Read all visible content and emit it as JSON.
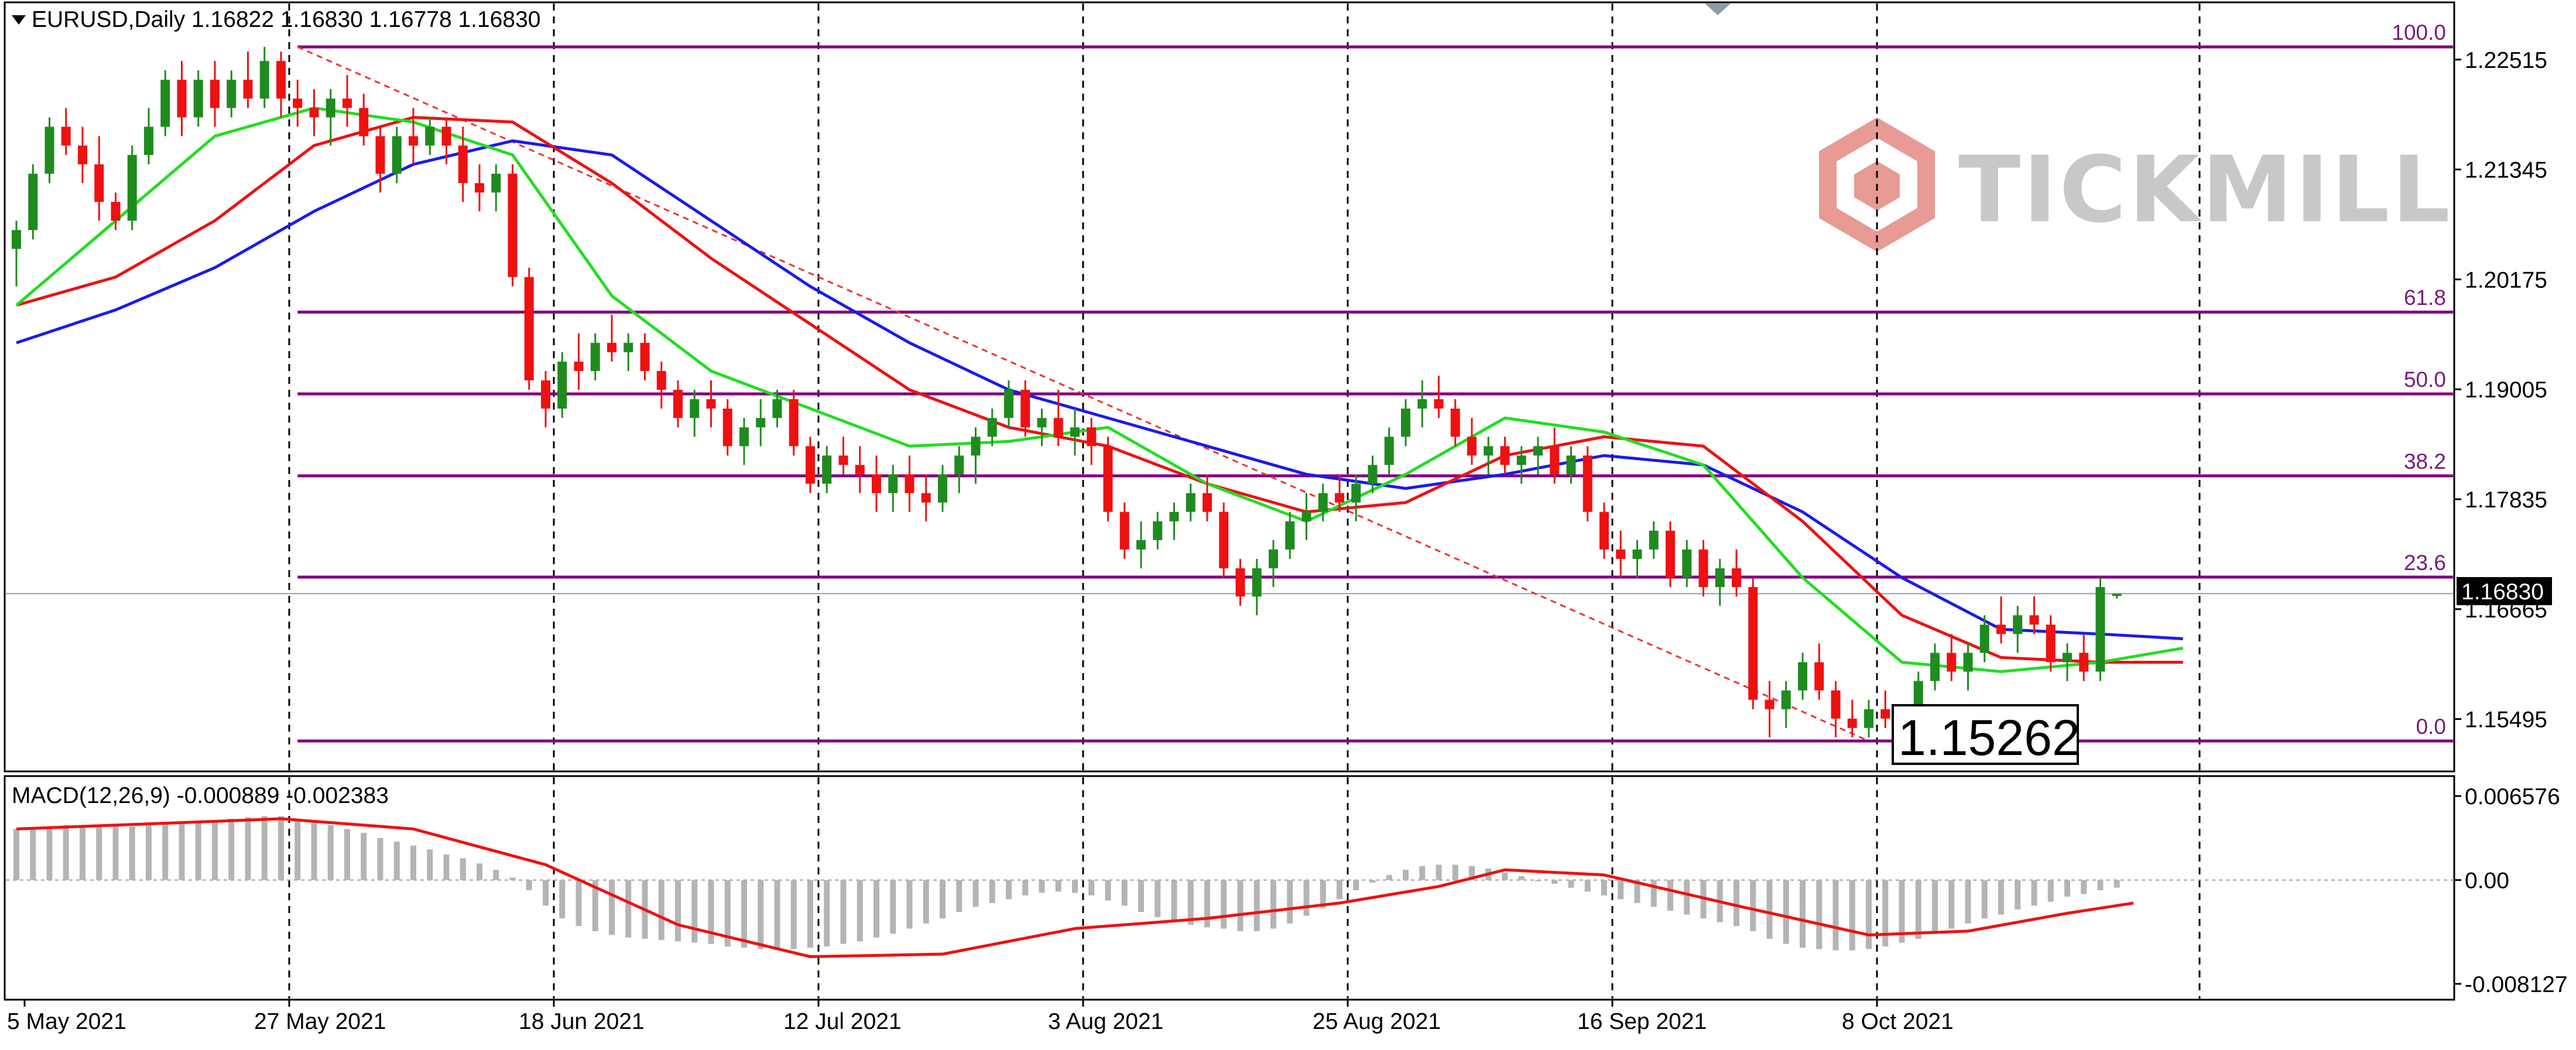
{
  "window": {
    "symbol_line": "EURUSD,Daily  1.16822 1.16830 1.16778 1.16830",
    "macd_line": "MACD(12,26,9) -0.000889 -0.002383",
    "brand_text": "TICKMILL",
    "current_price_label": "1.16830",
    "annotation_price": "1.15262"
  },
  "colors": {
    "bull": "#1f8b1f",
    "bear": "#ee1111",
    "fib": "#800080",
    "ma_fast": "#22dd22",
    "ma_mid": "#ee1111",
    "ma_slow": "#1a1aee",
    "trend": "#ee3333",
    "macd_hist": "#b4b4b4",
    "macd_signal": "#ee1111",
    "brand": "#c8c8c8",
    "brand_logo": "#e89a95"
  },
  "chart_data": [
    {
      "type": "candlestick",
      "title": "EURUSD,Daily",
      "ohlc_header": {
        "open": 1.16822,
        "high": 1.1683,
        "low": 1.16778,
        "close": 1.1683
      },
      "y_ticks": [
        "1.22515",
        "1.21345",
        "1.20175",
        "1.19005",
        "1.17835",
        "1.16665",
        "1.15495"
      ],
      "ylim": [
        1.1505,
        1.229
      ],
      "x_ticks": [
        "5 May 2021",
        "27 May 2021",
        "18 Jun 2021",
        "12 Jul 2021",
        "3 Aug 2021",
        "25 Aug 2021",
        "16 Sep 2021",
        "8 Oct 2021"
      ],
      "x_tick_index": [
        0,
        16,
        32,
        48,
        64,
        80,
        96,
        112
      ],
      "grid": "vertical-dashed",
      "current_price": 1.1683,
      "fibonacci": {
        "high": 1.2265,
        "low": 1.15262,
        "levels": [
          {
            "label": "100.0",
            "value": 1.2265
          },
          {
            "label": "61.8",
            "value": 1.19827
          },
          {
            "label": "50.0",
            "value": 1.18956
          },
          {
            "label": "38.2",
            "value": 1.18084
          },
          {
            "label": "23.6",
            "value": 1.17006
          },
          {
            "label": "0.0",
            "value": 1.15262
          }
        ]
      },
      "candles": [
        [
          1.205,
          1.208,
          1.201,
          1.207
        ],
        [
          1.207,
          1.214,
          1.206,
          1.213
        ],
        [
          1.213,
          1.219,
          1.212,
          1.218
        ],
        [
          1.218,
          1.22,
          1.215,
          1.216
        ],
        [
          1.216,
          1.218,
          1.212,
          1.214
        ],
        [
          1.214,
          1.217,
          1.208,
          1.21
        ],
        [
          1.21,
          1.211,
          1.207,
          1.208
        ],
        [
          1.208,
          1.216,
          1.207,
          1.215
        ],
        [
          1.215,
          1.22,
          1.214,
          1.218
        ],
        [
          1.218,
          1.224,
          1.217,
          1.223
        ],
        [
          1.223,
          1.225,
          1.217,
          1.219
        ],
        [
          1.219,
          1.224,
          1.218,
          1.223
        ],
        [
          1.223,
          1.225,
          1.218,
          1.22
        ],
        [
          1.22,
          1.224,
          1.219,
          1.223
        ],
        [
          1.223,
          1.226,
          1.22,
          1.221
        ],
        [
          1.221,
          1.2265,
          1.22,
          1.225
        ],
        [
          1.225,
          1.226,
          1.219,
          1.221
        ],
        [
          1.221,
          1.223,
          1.218,
          1.22
        ],
        [
          1.22,
          1.222,
          1.217,
          1.219
        ],
        [
          1.219,
          1.222,
          1.216,
          1.221
        ],
        [
          1.221,
          1.2235,
          1.218,
          1.22
        ],
        [
          1.22,
          1.2215,
          1.216,
          1.217
        ],
        [
          1.217,
          1.218,
          1.211,
          1.213
        ],
        [
          1.213,
          1.218,
          1.212,
          1.217
        ],
        [
          1.217,
          1.22,
          1.214,
          1.216
        ],
        [
          1.216,
          1.219,
          1.215,
          1.218
        ],
        [
          1.218,
          1.219,
          1.214,
          1.216
        ],
        [
          1.216,
          1.218,
          1.21,
          1.212
        ],
        [
          1.212,
          1.214,
          1.209,
          1.211
        ],
        [
          1.211,
          1.214,
          1.209,
          1.213
        ],
        [
          1.213,
          1.214,
          1.201,
          1.202
        ],
        [
          1.202,
          1.203,
          1.19,
          1.191
        ],
        [
          1.191,
          1.192,
          1.186,
          1.188
        ],
        [
          1.188,
          1.194,
          1.187,
          1.193
        ],
        [
          1.193,
          1.196,
          1.19,
          1.192
        ],
        [
          1.192,
          1.196,
          1.191,
          1.195
        ],
        [
          1.195,
          1.198,
          1.193,
          1.194
        ],
        [
          1.194,
          1.196,
          1.192,
          1.195
        ],
        [
          1.195,
          1.196,
          1.191,
          1.192
        ],
        [
          1.192,
          1.193,
          1.188,
          1.19
        ],
        [
          1.19,
          1.191,
          1.186,
          1.187
        ],
        [
          1.187,
          1.19,
          1.185,
          1.189
        ],
        [
          1.189,
          1.191,
          1.186,
          1.188
        ],
        [
          1.188,
          1.189,
          1.183,
          1.184
        ],
        [
          1.184,
          1.187,
          1.182,
          1.186
        ],
        [
          1.186,
          1.189,
          1.184,
          1.187
        ],
        [
          1.187,
          1.19,
          1.186,
          1.189
        ],
        [
          1.189,
          1.19,
          1.183,
          1.184
        ],
        [
          1.184,
          1.185,
          1.179,
          1.18
        ],
        [
          1.18,
          1.184,
          1.179,
          1.183
        ],
        [
          1.183,
          1.185,
          1.181,
          1.182
        ],
        [
          1.182,
          1.184,
          1.179,
          1.181
        ],
        [
          1.181,
          1.183,
          1.177,
          1.179
        ],
        [
          1.179,
          1.182,
          1.177,
          1.181
        ],
        [
          1.181,
          1.183,
          1.177,
          1.179
        ],
        [
          1.179,
          1.181,
          1.176,
          1.178
        ],
        [
          1.178,
          1.182,
          1.177,
          1.181
        ],
        [
          1.181,
          1.184,
          1.179,
          1.183
        ],
        [
          1.183,
          1.186,
          1.18,
          1.185
        ],
        [
          1.185,
          1.188,
          1.184,
          1.187
        ],
        [
          1.187,
          1.191,
          1.186,
          1.19
        ],
        [
          1.19,
          1.191,
          1.185,
          1.186
        ],
        [
          1.186,
          1.188,
          1.184,
          1.187
        ],
        [
          1.187,
          1.19,
          1.184,
          1.185
        ],
        [
          1.185,
          1.188,
          1.183,
          1.186
        ],
        [
          1.186,
          1.187,
          1.182,
          1.184
        ],
        [
          1.184,
          1.185,
          1.176,
          1.177
        ],
        [
          1.177,
          1.178,
          1.172,
          1.173
        ],
        [
          1.173,
          1.176,
          1.171,
          1.174
        ],
        [
          1.174,
          1.177,
          1.173,
          1.176
        ],
        [
          1.176,
          1.178,
          1.174,
          1.177
        ],
        [
          1.177,
          1.18,
          1.176,
          1.179
        ],
        [
          1.179,
          1.181,
          1.176,
          1.177
        ],
        [
          1.177,
          1.178,
          1.17,
          1.171
        ],
        [
          1.171,
          1.172,
          1.167,
          1.168
        ],
        [
          1.168,
          1.172,
          1.166,
          1.171
        ],
        [
          1.171,
          1.174,
          1.169,
          1.173
        ],
        [
          1.173,
          1.177,
          1.172,
          1.176
        ],
        [
          1.176,
          1.179,
          1.174,
          1.177
        ],
        [
          1.177,
          1.18,
          1.176,
          1.179
        ],
        [
          1.179,
          1.181,
          1.177,
          1.178
        ],
        [
          1.178,
          1.181,
          1.176,
          1.18
        ],
        [
          1.18,
          1.183,
          1.179,
          1.182
        ],
        [
          1.182,
          1.186,
          1.181,
          1.185
        ],
        [
          1.185,
          1.189,
          1.184,
          1.188
        ],
        [
          1.188,
          1.191,
          1.186,
          1.189
        ],
        [
          1.189,
          1.1915,
          1.187,
          1.188
        ],
        [
          1.188,
          1.189,
          1.184,
          1.185
        ],
        [
          1.185,
          1.187,
          1.182,
          1.183
        ],
        [
          1.183,
          1.185,
          1.181,
          1.184
        ],
        [
          1.184,
          1.185,
          1.181,
          1.182
        ],
        [
          1.182,
          1.184,
          1.18,
          1.183
        ],
        [
          1.183,
          1.185,
          1.181,
          1.184
        ],
        [
          1.184,
          1.186,
          1.18,
          1.181
        ],
        [
          1.181,
          1.184,
          1.18,
          1.183
        ],
        [
          1.183,
          1.184,
          1.176,
          1.177
        ],
        [
          1.177,
          1.178,
          1.172,
          1.173
        ],
        [
          1.173,
          1.175,
          1.17,
          1.172
        ],
        [
          1.172,
          1.174,
          1.17,
          1.173
        ],
        [
          1.173,
          1.176,
          1.172,
          1.175
        ],
        [
          1.175,
          1.176,
          1.169,
          1.17
        ],
        [
          1.17,
          1.174,
          1.169,
          1.173
        ],
        [
          1.173,
          1.174,
          1.168,
          1.169
        ],
        [
          1.169,
          1.172,
          1.167,
          1.171
        ],
        [
          1.171,
          1.173,
          1.168,
          1.169
        ],
        [
          1.169,
          1.17,
          1.156,
          1.157
        ],
        [
          1.157,
          1.159,
          1.153,
          1.156
        ],
        [
          1.156,
          1.159,
          1.154,
          1.158
        ],
        [
          1.158,
          1.162,
          1.157,
          1.161
        ],
        [
          1.161,
          1.163,
          1.157,
          1.158
        ],
        [
          1.158,
          1.159,
          1.153,
          1.155
        ],
        [
          1.155,
          1.157,
          1.153,
          1.154
        ],
        [
          1.154,
          1.157,
          1.153,
          1.156
        ],
        [
          1.156,
          1.158,
          1.154,
          1.155
        ],
        [
          1.155,
          1.156,
          1.1526,
          1.153
        ],
        [
          1.153,
          1.16,
          1.1526,
          1.159
        ],
        [
          1.159,
          1.163,
          1.158,
          1.162
        ],
        [
          1.162,
          1.164,
          1.159,
          1.16
        ],
        [
          1.16,
          1.163,
          1.158,
          1.162
        ],
        [
          1.162,
          1.166,
          1.161,
          1.165
        ],
        [
          1.165,
          1.168,
          1.163,
          1.164
        ],
        [
          1.164,
          1.167,
          1.162,
          1.166
        ],
        [
          1.166,
          1.168,
          1.164,
          1.165
        ],
        [
          1.165,
          1.166,
          1.16,
          1.161
        ],
        [
          1.161,
          1.163,
          1.159,
          1.162
        ],
        [
          1.162,
          1.164,
          1.159,
          1.16
        ],
        [
          1.16,
          1.17,
          1.159,
          1.169
        ],
        [
          1.16822,
          1.1683,
          1.16778,
          1.1683
        ]
      ],
      "ma_fast": {
        "x": [
          0,
          6,
          12,
          18,
          24,
          30,
          36,
          42,
          48,
          54,
          60,
          66,
          72,
          78,
          84,
          90,
          96,
          102,
          108,
          114,
          120,
          126,
          131
        ],
        "y": [
          1.199,
          1.208,
          1.217,
          1.22,
          1.2185,
          1.215,
          1.2,
          1.192,
          1.188,
          1.184,
          1.1845,
          1.186,
          1.18,
          1.176,
          1.181,
          1.187,
          1.1855,
          1.182,
          1.17,
          1.161,
          1.16,
          1.161,
          1.1625
        ]
      },
      "ma_mid": {
        "x": [
          0,
          6,
          12,
          18,
          24,
          30,
          36,
          42,
          48,
          54,
          60,
          66,
          72,
          78,
          84,
          90,
          96,
          102,
          108,
          114,
          120,
          126,
          131
        ],
        "y": [
          1.199,
          1.202,
          1.208,
          1.216,
          1.219,
          1.2185,
          1.212,
          1.204,
          1.197,
          1.19,
          1.186,
          1.184,
          1.18,
          1.177,
          1.178,
          1.183,
          1.185,
          1.184,
          1.176,
          1.166,
          1.1615,
          1.161,
          1.161
        ]
      },
      "ma_slow": {
        "x": [
          0,
          6,
          12,
          18,
          24,
          30,
          36,
          42,
          48,
          54,
          60,
          66,
          72,
          78,
          84,
          90,
          96,
          102,
          108,
          114,
          120,
          126,
          131
        ],
        "y": [
          1.195,
          1.1985,
          1.203,
          1.209,
          1.214,
          1.2165,
          1.215,
          1.208,
          1.201,
          1.195,
          1.19,
          1.187,
          1.184,
          1.181,
          1.1795,
          1.181,
          1.183,
          1.182,
          1.177,
          1.17,
          1.1645,
          1.164,
          1.1635
        ]
      },
      "trendline": {
        "x": [
          17,
          112
        ],
        "y": [
          1.2265,
          1.15262
        ]
      }
    },
    {
      "type": "macd",
      "title": "MACD(12,26,9)",
      "macd": -0.000889,
      "signal": -0.002383,
      "y_ticks": [
        "0.006576",
        "0.00",
        "-0.008127"
      ],
      "ylim": [
        -0.009,
        0.0075
      ],
      "histogram": [
        0.004,
        0.0041,
        0.0042,
        0.0043,
        0.0043,
        0.0042,
        0.0042,
        0.0042,
        0.0043,
        0.0044,
        0.0045,
        0.0046,
        0.0047,
        0.0048,
        0.0049,
        0.005,
        0.005,
        0.0048,
        0.0046,
        0.0043,
        0.004,
        0.0037,
        0.0033,
        0.003,
        0.0027,
        0.0024,
        0.002,
        0.0017,
        0.0013,
        0.0008,
        0.0002,
        -0.0008,
        -0.002,
        -0.003,
        -0.0036,
        -0.004,
        -0.0043,
        -0.0045,
        -0.0046,
        -0.0047,
        -0.0048,
        -0.0049,
        -0.005,
        -0.0052,
        -0.0053,
        -0.0054,
        -0.0054,
        -0.0054,
        -0.0053,
        -0.0052,
        -0.005,
        -0.0048,
        -0.0045,
        -0.0042,
        -0.0038,
        -0.0034,
        -0.003,
        -0.0025,
        -0.0021,
        -0.0018,
        -0.0015,
        -0.0012,
        -0.001,
        -0.0009,
        -0.001,
        -0.0012,
        -0.0016,
        -0.002,
        -0.0025,
        -0.0029,
        -0.0032,
        -0.0035,
        -0.0037,
        -0.0038,
        -0.004,
        -0.004,
        -0.0038,
        -0.0034,
        -0.0028,
        -0.0022,
        -0.0015,
        -0.0008,
        -0.0002,
        0.0004,
        0.0008,
        0.0011,
        0.0012,
        0.0012,
        0.0011,
        0.0009,
        0.0006,
        0.0003,
        0.0,
        -0.0003,
        -0.0006,
        -0.0009,
        -0.0012,
        -0.0015,
        -0.0018,
        -0.0021,
        -0.0024,
        -0.0027,
        -0.003,
        -0.0033,
        -0.0036,
        -0.004,
        -0.0046,
        -0.005,
        -0.0053,
        -0.0054,
        -0.0055,
        -0.0055,
        -0.0054,
        -0.0052,
        -0.0049,
        -0.0046,
        -0.0042,
        -0.0038,
        -0.0034,
        -0.003,
        -0.0027,
        -0.0023,
        -0.002,
        -0.0017,
        -0.0013,
        -0.0011,
        -0.0008,
        -0.0006
      ],
      "signal_line": {
        "x": [
          0,
          8,
          16,
          24,
          32,
          40,
          48,
          56,
          64,
          72,
          80,
          86,
          90,
          96,
          104,
          112,
          118,
          124,
          128
        ],
        "y": [
          0.004,
          0.0044,
          0.0048,
          0.004,
          0.0012,
          -0.0035,
          -0.006,
          -0.0058,
          -0.0038,
          -0.003,
          -0.0018,
          -0.0005,
          0.0008,
          0.0004,
          -0.002,
          -0.0043,
          -0.004,
          -0.0026,
          -0.0018
        ]
      }
    }
  ]
}
